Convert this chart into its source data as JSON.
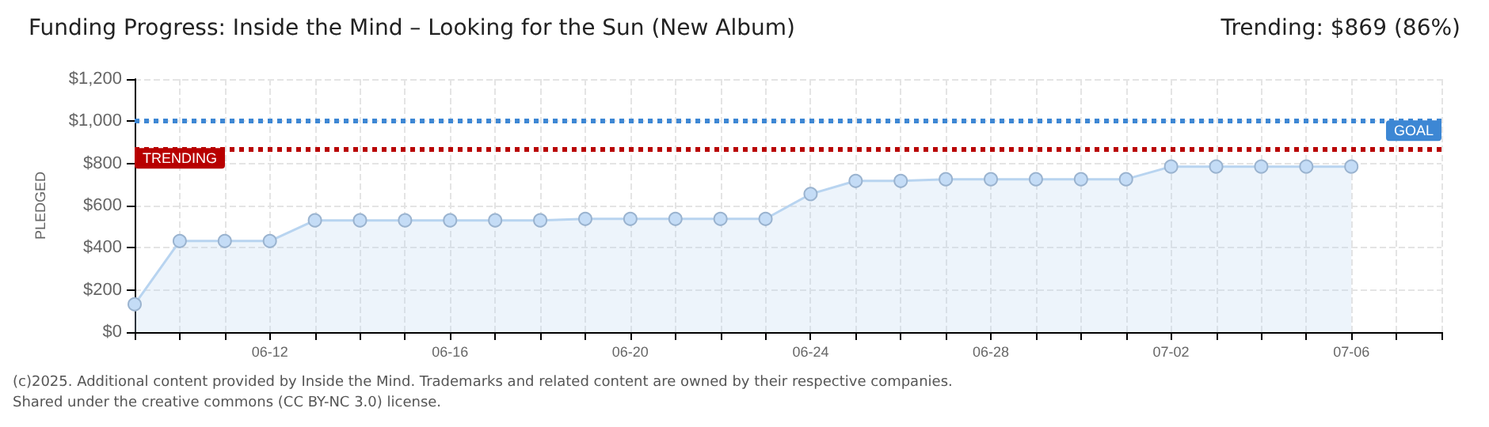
{
  "chart_data": {
    "type": "area",
    "title": "Funding Progress: Inside the Mind – Looking for the Sun (New Album)",
    "subtitle": "Trending: $869 (86%)",
    "ylabel": "PLEDGED",
    "annotations": [
      "(c)2025. Additional content provided by Inside the Mind. Trademarks and related content are owned by their respective companies.",
      "Shared under the creative commons (CC BY-NC 3.0) license."
    ],
    "x": [
      "2025-06-09",
      "2025-06-10",
      "2025-06-11",
      "2025-06-12",
      "2025-06-13",
      "2025-06-14",
      "2025-06-15",
      "2025-06-16",
      "2025-06-17",
      "2025-06-18",
      "2025-06-19",
      "2025-06-20",
      "2025-06-21",
      "2025-06-22",
      "2025-06-23",
      "2025-06-24",
      "2025-06-25",
      "2025-06-26",
      "2025-06-27",
      "2025-06-28",
      "2025-06-29",
      "2025-06-30",
      "2025-07-01",
      "2025-07-02",
      "2025-07-03",
      "2025-07-04",
      "2025-07-05",
      "2025-07-06"
    ],
    "series": [
      {
        "color": "#b8d4f0",
        "values": [
          132,
          432,
          432,
          432,
          530,
          530,
          530,
          530,
          530,
          530,
          537,
          537,
          537,
          537,
          537,
          655,
          717,
          717,
          725,
          725,
          725,
          725,
          725,
          785,
          785,
          785,
          785,
          785
        ]
      }
    ],
    "xlim": [
      "2025-06-09",
      "2025-07-08"
    ],
    "xticks": [
      {
        "value": "2025-06-09",
        "label": null
      },
      {
        "value": "2025-06-10",
        "label": null
      },
      {
        "value": "2025-06-11",
        "label": null
      },
      {
        "value": "2025-06-12",
        "label": "06-12"
      },
      {
        "value": "2025-06-13",
        "label": null
      },
      {
        "value": "2025-06-14",
        "label": null
      },
      {
        "value": "2025-06-15",
        "label": null
      },
      {
        "value": "2025-06-16",
        "label": "06-16"
      },
      {
        "value": "2025-06-17",
        "label": null
      },
      {
        "value": "2025-06-18",
        "label": null
      },
      {
        "value": "2025-06-19",
        "label": null
      },
      {
        "value": "2025-06-20",
        "label": "06-20"
      },
      {
        "value": "2025-06-21",
        "label": null
      },
      {
        "value": "2025-06-22",
        "label": null
      },
      {
        "value": "2025-06-23",
        "label": null
      },
      {
        "value": "2025-06-24",
        "label": "06-24"
      },
      {
        "value": "2025-06-25",
        "label": null
      },
      {
        "value": "2025-06-26",
        "label": null
      },
      {
        "value": "2025-06-27",
        "label": null
      },
      {
        "value": "2025-06-28",
        "label": "06-28"
      },
      {
        "value": "2025-06-29",
        "label": null
      },
      {
        "value": "2025-06-30",
        "label": null
      },
      {
        "value": "2025-07-01",
        "label": null
      },
      {
        "value": "2025-07-02",
        "label": "07-02"
      },
      {
        "value": "2025-07-03",
        "label": null
      },
      {
        "value": "2025-07-04",
        "label": null
      },
      {
        "value": "2025-07-05",
        "label": null
      },
      {
        "value": "2025-07-06",
        "label": "07-06"
      },
      {
        "value": "2025-07-07",
        "label": null
      },
      {
        "value": "2025-07-08",
        "label": null
      }
    ],
    "ylim": [
      0,
      1200
    ],
    "yticks": [
      {
        "value": 0,
        "label": "$0"
      },
      {
        "value": 200,
        "label": "$200"
      },
      {
        "value": 400,
        "label": "$400"
      },
      {
        "value": 600,
        "label": "$600"
      },
      {
        "value": 800,
        "label": "$800"
      },
      {
        "value": 1000,
        "label": "$1,000"
      },
      {
        "value": 1200,
        "label": "$1,200"
      }
    ],
    "ref_lines": [
      {
        "axis": "y",
        "value": 1000,
        "label": "GOAL",
        "color": "#3d87d4",
        "line_style": "dotted"
      },
      {
        "axis": "y",
        "value": 869,
        "label": "TRENDING",
        "color": "#b80000",
        "line_style": "dotted"
      }
    ],
    "grid": true,
    "marker": "circle"
  }
}
